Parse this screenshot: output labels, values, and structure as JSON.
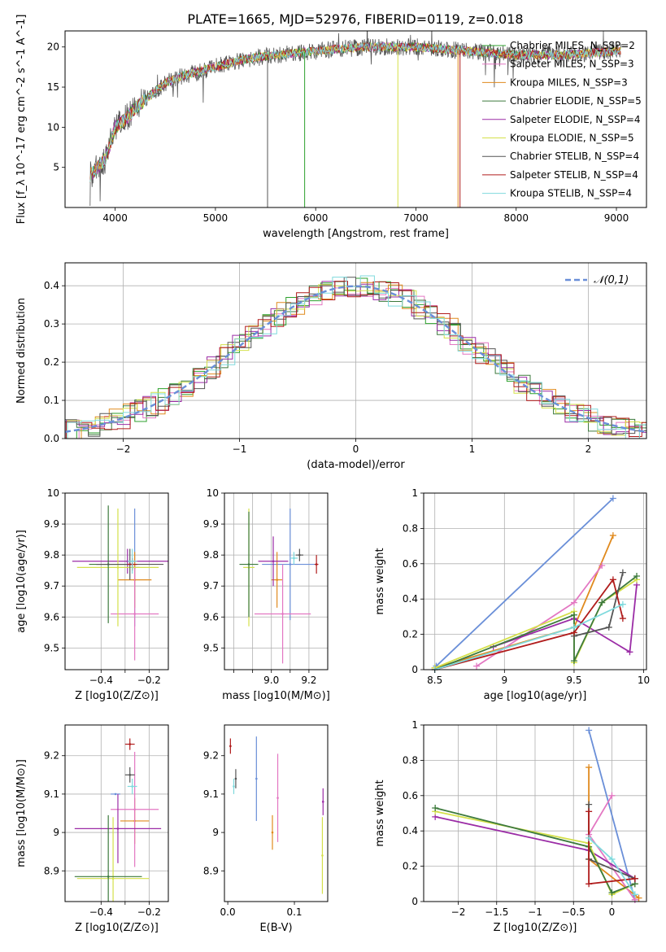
{
  "title": "PLATE=1665, MJD=52976, FIBERID=0119, z=0.018",
  "colors": [
    "#2ca02c",
    "#e377c2",
    "#e08a1e",
    "#3d7a3d",
    "#9b2ca6",
    "#d4e04a",
    "#555555",
    "#b01c1c",
    "#7fdadd"
  ],
  "chart_data": [
    {
      "id": "spectrum",
      "type": "line",
      "xlabel": "wavelength [Angstrom, rest frame]",
      "ylabel": "Flux [f_λ 10^-17 erg cm^-2 s^-1 A^-1]",
      "xlim": [
        3500,
        9300
      ],
      "ylim": [
        0,
        22
      ],
      "xticks": [
        4000,
        5000,
        6000,
        7000,
        8000,
        9000
      ],
      "yticks": [
        5,
        10,
        15,
        20
      ],
      "grid": false,
      "legend_position": "right",
      "legend": [
        {
          "label": "Chabrier MILES, N_SSP=2",
          "color": "#2ca02c"
        },
        {
          "label": "Salpeter MILES, N_SSP=3",
          "color": "#e377c2"
        },
        {
          "label": "Kroupa MILES, N_SSP=3",
          "color": "#e08a1e"
        },
        {
          "label": "Chabrier ELODIE, N_SSP=5",
          "color": "#3d7a3d"
        },
        {
          "label": "Salpeter ELODIE, N_SSP=4",
          "color": "#9b2ca6"
        },
        {
          "label": "Kroupa ELODIE, N_SSP=5",
          "color": "#d4e04a"
        },
        {
          "label": "Chabrier STELIB, N_SSP=4",
          "color": "#555555"
        },
        {
          "label": "Salpeter STELIB, N_SSP=4",
          "color": "#b01c1c"
        },
        {
          "label": "Kroupa STELIB, N_SSP=4",
          "color": "#7fdadd"
        }
      ],
      "continuum": {
        "x": [
          3750,
          3900,
          4000,
          4100,
          4300,
          4500,
          4700,
          5000,
          5300,
          5600,
          6000,
          6500,
          7000,
          7500,
          8000,
          8500,
          9000
        ],
        "y": [
          4,
          6,
          10,
          11,
          13.5,
          15.5,
          16.5,
          17.5,
          18.5,
          19,
          19.5,
          20,
          20,
          19.5,
          19,
          19,
          19.5
        ]
      }
    },
    {
      "id": "residuals",
      "type": "line",
      "xlabel": "(data-model)/error",
      "ylabel": "Normed distribution",
      "xlim": [
        -2.5,
        2.5
      ],
      "ylim": [
        0,
        0.46
      ],
      "xticks": [
        -2,
        -1,
        0,
        1,
        2
      ],
      "yticks": [
        0.0,
        0.1,
        0.2,
        0.3,
        0.4
      ],
      "grid": true,
      "legend_position": "top-right",
      "reference_label": "𝒩(0,1)",
      "reference_color": "#6a8fd8"
    },
    {
      "id": "age_vs_Z",
      "type": "scatter",
      "xlabel": "Z [log10(Z/Z⊙)]",
      "ylabel": "age [log10(age/yr)]",
      "xlim": [
        -0.55,
        -0.12
      ],
      "ylim": [
        9.43,
        10.0
      ],
      "xticks": [
        -0.4,
        -0.3,
        -0.2
      ],
      "xticklabels": [
        "−0.4",
        "",
        "−0.2"
      ],
      "yticks": [
        9.5,
        9.6,
        9.7,
        9.8,
        9.9,
        10.0
      ],
      "grid": true,
      "points": [
        {
          "x": -0.26,
          "y": 9.76,
          "xerr": 0.02,
          "yerr": 0.19,
          "color": "#6a8fd8"
        },
        {
          "x": -0.26,
          "y": 9.72,
          "xerr": 0.07,
          "yerr": 0.09,
          "color": "#e08a1e"
        },
        {
          "x": -0.26,
          "y": 9.61,
          "xerr": 0.1,
          "yerr": 0.15,
          "color": "#e377c2"
        },
        {
          "x": -0.29,
          "y": 9.78,
          "xerr": 0.23,
          "yerr": 0.04,
          "color": "#9b2ca6"
        },
        {
          "x": -0.33,
          "y": 9.76,
          "xerr": 0.17,
          "yerr": 0.19,
          "color": "#d4e04a"
        },
        {
          "x": -0.37,
          "y": 9.77,
          "xerr": 0.08,
          "yerr": 0.19,
          "color": "#3d7a3d"
        },
        {
          "x": -0.28,
          "y": 9.77,
          "xerr": 0.14,
          "yerr": 0.05,
          "color": "#555555"
        },
        {
          "x": -0.27,
          "y": 9.77,
          "xerr": 0.02,
          "yerr": 0.02,
          "color": "#b01c1c"
        },
        {
          "x": -0.27,
          "y": 9.78,
          "xerr": 0.02,
          "yerr": 0.04,
          "color": "#7fdadd"
        }
      ]
    },
    {
      "id": "age_vs_mass",
      "type": "scatter",
      "xlabel": "mass [log10(M/M⊙)]",
      "ylabel": "",
      "xlim": [
        8.75,
        9.3
      ],
      "ylim": [
        9.43,
        10.0
      ],
      "xticks": [
        8.8,
        8.9,
        9.0,
        9.1,
        9.2
      ],
      "xticklabels": [
        "",
        "",
        "9.0",
        "",
        "9.2"
      ],
      "yticks": [
        9.5,
        9.6,
        9.7,
        9.8,
        9.9,
        10.0
      ],
      "grid": true,
      "points": [
        {
          "x": 9.1,
          "y": 9.77,
          "xerr": 0.15,
          "yerr": 0.18,
          "color": "#6a8fd8"
        },
        {
          "x": 9.03,
          "y": 9.72,
          "xerr": 0.03,
          "yerr": 0.09,
          "color": "#e08a1e"
        },
        {
          "x": 9.06,
          "y": 9.61,
          "xerr": 0.15,
          "yerr": 0.16,
          "color": "#e377c2"
        },
        {
          "x": 9.01,
          "y": 9.78,
          "xerr": 0.08,
          "yerr": 0.08,
          "color": "#9b2ca6"
        },
        {
          "x": 8.88,
          "y": 9.76,
          "xerr": 0.03,
          "yerr": 0.19,
          "color": "#d4e04a"
        },
        {
          "x": 8.88,
          "y": 9.77,
          "xerr": 0.05,
          "yerr": 0.17,
          "color": "#3d7a3d"
        },
        {
          "x": 9.15,
          "y": 9.8,
          "xerr": 0.02,
          "yerr": 0.02,
          "color": "#555555"
        },
        {
          "x": 9.24,
          "y": 9.77,
          "xerr": 0.01,
          "yerr": 0.03,
          "color": "#b01c1c"
        },
        {
          "x": 9.12,
          "y": 9.79,
          "xerr": 0.02,
          "yerr": 0.02,
          "color": "#7fdadd"
        }
      ]
    },
    {
      "id": "mass_weight_vs_age",
      "type": "line",
      "xlabel": "age [log10(age/yr)]",
      "ylabel": "mass weight",
      "xlim": [
        8.42,
        10.02
      ],
      "ylim": [
        0,
        1.0
      ],
      "xticks": [
        8.5,
        9.0,
        9.5,
        10.0
      ],
      "yticks": [
        0.0,
        0.2,
        0.4,
        0.6,
        0.8,
        1.0
      ],
      "grid": true,
      "series": [
        {
          "color": "#6a8fd8",
          "x": [
            8.51,
            9.78
          ],
          "y": [
            0.02,
            0.97
          ]
        },
        {
          "color": "#e08a1e",
          "x": [
            8.5,
            9.5,
            9.78
          ],
          "y": [
            0.01,
            0.24,
            0.76
          ]
        },
        {
          "color": "#e377c2",
          "x": [
            8.8,
            9.5,
            9.7
          ],
          "y": [
            0.02,
            0.38,
            0.59
          ]
        },
        {
          "color": "#9b2ca6",
          "x": [
            8.92,
            9.5,
            9.9,
            9.95
          ],
          "y": [
            0.13,
            0.29,
            0.1,
            0.48
          ]
        },
        {
          "color": "#d4e04a",
          "x": [
            8.5,
            9.5,
            9.5,
            9.7,
            9.95
          ],
          "y": [
            0.01,
            0.33,
            0.04,
            0.38,
            0.51
          ]
        },
        {
          "color": "#3d7a3d",
          "x": [
            8.5,
            9.5,
            9.5,
            9.7,
            9.95
          ],
          "y": [
            0.0,
            0.31,
            0.05,
            0.38,
            0.53
          ]
        },
        {
          "color": "#555555",
          "x": [
            9.5,
            9.75,
            9.85
          ],
          "y": [
            0.19,
            0.24,
            0.55
          ]
        },
        {
          "color": "#b01c1c",
          "x": [
            8.5,
            9.5,
            9.78,
            9.85
          ],
          "y": [
            0.0,
            0.21,
            0.51,
            0.29
          ]
        },
        {
          "color": "#7fdadd",
          "x": [
            8.5,
            9.5,
            9.85
          ],
          "y": [
            0.0,
            0.24,
            0.37
          ]
        }
      ]
    },
    {
      "id": "mass_vs_Z",
      "type": "scatter",
      "xlabel": "Z [log10(Z/Z⊙)]",
      "ylabel": "mass [log10(M/M⊙)]",
      "xlim": [
        -0.55,
        -0.12
      ],
      "ylim": [
        8.82,
        9.28
      ],
      "xticks": [
        -0.4,
        -0.3,
        -0.2
      ],
      "xticklabels": [
        "−0.4",
        "",
        "−0.2"
      ],
      "yticks": [
        8.9,
        9.0,
        9.1,
        9.2
      ],
      "grid": true,
      "points": [
        {
          "x": -0.34,
          "y": 9.1,
          "xerr": 0.02,
          "yerr": 0.0,
          "color": "#6a8fd8"
        },
        {
          "x": -0.26,
          "y": 9.03,
          "xerr": 0.06,
          "yerr": 0.06,
          "color": "#e08a1e"
        },
        {
          "x": -0.26,
          "y": 9.06,
          "xerr": 0.1,
          "yerr": 0.15,
          "color": "#e377c2"
        },
        {
          "x": -0.33,
          "y": 9.01,
          "xerr": 0.18,
          "yerr": 0.09,
          "color": "#9b2ca6"
        },
        {
          "x": -0.35,
          "y": 8.88,
          "xerr": 0.15,
          "yerr": 0.16,
          "color": "#d4e04a"
        },
        {
          "x": -0.37,
          "y": 8.885,
          "xerr": 0.14,
          "yerr": 0.16,
          "color": "#3d7a3d"
        },
        {
          "x": -0.28,
          "y": 9.15,
          "xerr": 0.02,
          "yerr": 0.02,
          "color": "#555555"
        },
        {
          "x": -0.28,
          "y": 9.23,
          "xerr": 0.02,
          "yerr": 0.015,
          "color": "#b01c1c"
        },
        {
          "x": -0.27,
          "y": 9.12,
          "xerr": 0.02,
          "yerr": 0.02,
          "color": "#7fdadd"
        }
      ]
    },
    {
      "id": "mass_vs_EBV",
      "type": "scatter",
      "xlabel": "E(B-V)",
      "ylabel": "",
      "xlim": [
        -0.005,
        0.15
      ],
      "ylim": [
        8.82,
        9.28
      ],
      "xticks": [
        0.0,
        0.1
      ],
      "xticklabels": [
        "0.0",
        "0.1"
      ],
      "yticks": [
        8.9,
        9.0,
        9.1,
        9.2
      ],
      "grid": false,
      "points": [
        {
          "x": 0.043,
          "y": 9.14,
          "xerr": 0,
          "yerr": 0.11,
          "color": "#6a8fd8"
        },
        {
          "x": 0.067,
          "y": 9.0,
          "xerr": 0,
          "yerr": 0.045,
          "color": "#e08a1e"
        },
        {
          "x": 0.075,
          "y": 9.09,
          "xerr": 0,
          "yerr": 0.115,
          "color": "#e377c2"
        },
        {
          "x": 0.143,
          "y": 9.08,
          "xerr": 0,
          "yerr": 0.035,
          "color": "#9b2ca6"
        },
        {
          "x": 0.142,
          "y": 8.94,
          "xerr": 0,
          "yerr": 0.1,
          "color": "#d4e04a"
        },
        {
          "x": 0.012,
          "y": 9.14,
          "xerr": 0,
          "yerr": 0.025,
          "color": "#555555"
        },
        {
          "x": 0.004,
          "y": 9.225,
          "xerr": 0,
          "yerr": 0.02,
          "color": "#b01c1c"
        },
        {
          "x": 0.009,
          "y": 9.12,
          "xerr": 0,
          "yerr": 0.02,
          "color": "#7fdadd"
        }
      ]
    },
    {
      "id": "mass_weight_vs_Z",
      "type": "line",
      "xlabel": "Z [log10(Z/Z⊙)]",
      "ylabel": "mass weight",
      "xlim": [
        -2.45,
        0.45
      ],
      "ylim": [
        0,
        1.0
      ],
      "xticks": [
        -2.0,
        -1.5,
        -1.0,
        -0.5,
        0.0
      ],
      "yticks": [
        0.0,
        0.2,
        0.4,
        0.6,
        0.8,
        1.0
      ],
      "grid": true,
      "series": [
        {
          "color": "#6a8fd8",
          "x": [
            0.3,
            -0.3
          ],
          "y": [
            0.01,
            0.97
          ]
        },
        {
          "color": "#e08a1e",
          "x": [
            0.35,
            -0.3,
            -0.3
          ],
          "y": [
            0.02,
            0.24,
            0.76
          ]
        },
        {
          "color": "#e377c2",
          "x": [
            0.3,
            -0.3,
            0.0
          ],
          "y": [
            0.01,
            0.38,
            0.6
          ]
        },
        {
          "color": "#9b2ca6",
          "x": [
            -2.3,
            -0.3,
            0.3,
            0.3
          ],
          "y": [
            0.48,
            0.29,
            0.13,
            0.1
          ]
        },
        {
          "color": "#d4e04a",
          "x": [
            -2.3,
            -0.3,
            0.0,
            0.3
          ],
          "y": [
            0.51,
            0.33,
            0.04,
            0.1
          ]
        },
        {
          "color": "#3d7a3d",
          "x": [
            -2.3,
            -0.3,
            0.0,
            0.3
          ],
          "y": [
            0.53,
            0.31,
            0.05,
            0.1
          ]
        },
        {
          "color": "#555555",
          "x": [
            -0.3,
            -0.3,
            0.3
          ],
          "y": [
            0.55,
            0.24,
            0.13
          ]
        },
        {
          "color": "#b01c1c",
          "x": [
            -0.3,
            -0.3,
            0.3
          ],
          "y": [
            0.51,
            0.1,
            0.13
          ]
        },
        {
          "color": "#7fdadd",
          "x": [
            -0.3,
            0.0,
            0.3
          ],
          "y": [
            0.36,
            0.24,
            0.04
          ]
        }
      ]
    }
  ]
}
